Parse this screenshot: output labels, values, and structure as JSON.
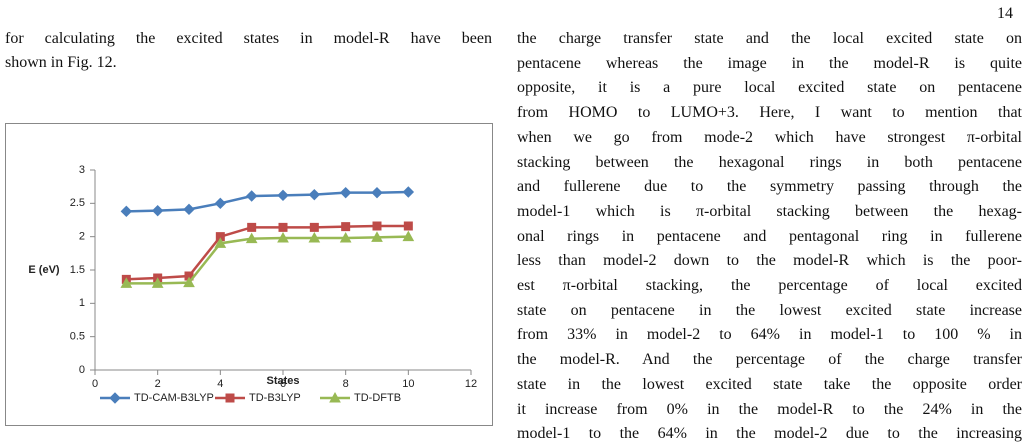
{
  "document": {
    "page_number": "14",
    "left_column": [
      "for calculating the excited states in model-R have been",
      "shown in Fig. 12."
    ],
    "right_column": [
      "the charge transfer state and the local excited state on",
      "pentacene whereas the image in the model-R is quite",
      "opposite, it is a pure local excited state on pentacene",
      "from HOMO to LUMO+3. Here, I want to mention that",
      "when we go from mode-2 which have strongest π-orbital",
      "stacking between the hexagonal rings in both pentacene",
      "and fullerene due to the symmetry passing through the",
      "model-1 which is π-orbital stacking between the hexag-",
      "onal rings in pentacene and pentagonal ring in fullerene",
      "less than model-2 down to the model-R which is the poor-",
      "est π-orbital stacking, the percentage of local excited",
      "state on pentacene in the lowest excited state increase",
      "from 33% in model-2 to 64% in model-1 to 100 % in",
      "the model-R. And the percentage of the charge transfer",
      "state in the lowest excited state take the opposite order",
      "it increase from 0% in the model-R to the 24% in the",
      "model-1 to the 64% in the model-2 due to the increasing"
    ]
  },
  "chart_data": {
    "type": "line",
    "x_label": "States",
    "y_label": "E (eV)",
    "x": [
      1,
      2,
      3,
      4,
      5,
      6,
      7,
      8,
      9,
      10
    ],
    "series": [
      {
        "name": "TD-CAM-B3LYP",
        "color": "#4a7ebb",
        "marker": "diamond",
        "values": [
          2.38,
          2.39,
          2.41,
          2.5,
          2.61,
          2.62,
          2.63,
          2.66,
          2.66,
          2.67
        ]
      },
      {
        "name": "TD-B3LYP",
        "color": "#be4b48",
        "marker": "square",
        "values": [
          1.36,
          1.38,
          1.41,
          2.0,
          2.14,
          2.14,
          2.14,
          2.15,
          2.16,
          2.16
        ]
      },
      {
        "name": "TD-DFTB",
        "color": "#98b954",
        "marker": "triangle",
        "values": [
          1.3,
          1.3,
          1.31,
          1.9,
          1.97,
          1.98,
          1.98,
          1.98,
          1.99,
          2.0
        ]
      }
    ],
    "xlim": [
      0,
      12
    ],
    "xticks": [
      0,
      2,
      4,
      6,
      8,
      10,
      12
    ],
    "ylim": [
      0,
      3
    ],
    "yticks": [
      0,
      0.5,
      1,
      1.5,
      2,
      2.5,
      3
    ],
    "legend": "bottom"
  }
}
